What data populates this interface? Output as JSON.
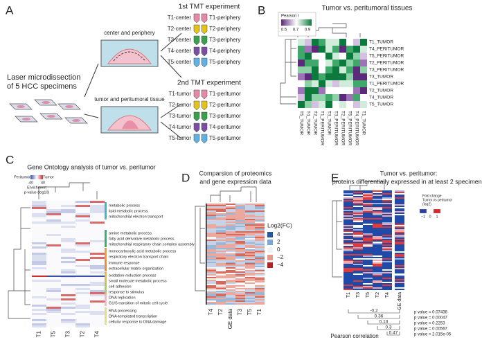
{
  "panels": {
    "a": {
      "label": "A",
      "intro": [
        "Laser microdissection",
        "of 5 HCC specimens"
      ],
      "box1": "center and periphery",
      "box2": "tumor and peritumoral tissue",
      "tube_colors": [
        "#e58aa6",
        "#e4c21e",
        "#3aa04e",
        "#7a4fa3",
        "#5fb2e3"
      ],
      "exp1": {
        "title": "1st TMT experiment",
        "left": [
          "T1-center",
          "T2-center",
          "T3-center",
          "T4-center",
          "T5-center"
        ],
        "right": [
          "T1-periphery",
          "T2-periphery",
          "T3-periphery",
          "T4-periphery",
          "T5-periphery"
        ]
      },
      "exp2": {
        "title": "2nd TMT experiment",
        "left": [
          "T1-tumor",
          "T2-tumor",
          "T3-tumor",
          "T4-tumor",
          "T5-tumor"
        ],
        "right": [
          "T1-peritumor",
          "T2-peritumor",
          "T3-peritumor",
          "T4-peritumor",
          "T5-peritumor"
        ]
      }
    },
    "b": {
      "label": "B",
      "title": "Tumor vs. peritumoral tissues",
      "legend_title": "Pearson r",
      "legend_ticks": [
        "0.5",
        "0.7",
        "0.9"
      ],
      "rows": [
        {
          "text": "T1_TUMOR",
          "color": "#e5532b"
        },
        "T4_PERITUMOR",
        "T5_PERITUMOR",
        "T2_PERITUMOR",
        "T3_PERITUMOR",
        "T3_TUMOR",
        {
          "text": "T1_PERITUMOR",
          "color": "#e5532b"
        },
        "T2_TUMOR",
        "T4_TUMOR",
        "T5_TUMOR"
      ],
      "cols": [
        "T5_TUMOR",
        "T4_TUMOR",
        "T2_TUMOR",
        {
          "text": "T1_PERITUMOR",
          "color": "#e5532b"
        },
        "T3_TUMOR",
        "T3_PERITUMOR",
        "T2_PERITUMOR",
        "T5_PERITUMOR",
        "T4_PERITUMOR",
        {
          "text": "T1_TUMOR",
          "color": "#e5532b"
        }
      ]
    },
    "c": {
      "label": "C",
      "title": "Gene Ontology analysis of tumor vs. peritumor",
      "legend_left": "Peritumor",
      "legend_right": "Tumor",
      "legend_ticks": [
        "-40",
        "40"
      ],
      "legend_caption": [
        "Enrichment",
        "p-value (log10)"
      ],
      "cols": [
        {
          "text": "T1",
          "color": "#e5532b"
        },
        "T5",
        "T3",
        "T2",
        "T4"
      ],
      "terms": [
        "metabolic process",
        "lipid metabolic process",
        "mitochondrial electron transport",
        "amine metabolic process",
        "fatty acid derivative metabolic process",
        "mitochondrial respiratory chain complex assembly",
        "monocarboxylic acid metabolic process",
        "respiratory electron transport chain",
        "immune response",
        "extracellular matrix organization",
        "oxidation-reduction process",
        "small molecule metabolic process",
        "cell adhesion",
        "response to stimulus",
        "DNA replication",
        "G1/S transition of mitotic cell cycle",
        "RNA processing",
        "DNA-templated transcription",
        "cellular response to DNA damage"
      ]
    },
    "d": {
      "label": "D",
      "title": [
        "Comparsion of proteomics",
        "and gene expression data"
      ],
      "legend_title": "Log2(FC)",
      "legend_ticks": [
        "4",
        "2",
        "0",
        "−2",
        "−4"
      ],
      "legend_colors": [
        "#1f5c9e",
        "#7ea6d0",
        "#f2f2f2",
        "#e59a8c",
        "#b52121"
      ],
      "cols": [
        "T4",
        "T2",
        "GE data",
        "T3",
        "T5",
        {
          "text": "T1",
          "color": "#e5532b"
        }
      ]
    },
    "e": {
      "label": "E",
      "title": [
        "Tumor vs. peritumor:",
        "proteins differentially expressed in at least 2 specimens"
      ],
      "legend_title": [
        "Fold change",
        "Tumor vs peritumor",
        "(log2)"
      ],
      "legend_ticks": [
        "−1",
        "0",
        "1"
      ],
      "cols": [
        {
          "text": "T1",
          "color": "#e5532b"
        },
        "T3",
        "T5",
        "T2",
        "T4",
        "GE data"
      ],
      "correlations": [
        {
          "r": "-0.2",
          "p": "p value = 0.07438"
        },
        {
          "r": "0.36",
          "p": "p value = 0.00047"
        },
        {
          "r": "0.13",
          "p": "p value = 0.2253"
        },
        {
          "r": "0.3",
          "p": "p value = 0.00567"
        },
        {
          "r": "0.47",
          "p": "p value = 2.015e-05"
        }
      ],
      "footer": "Pearson correlation"
    }
  }
}
